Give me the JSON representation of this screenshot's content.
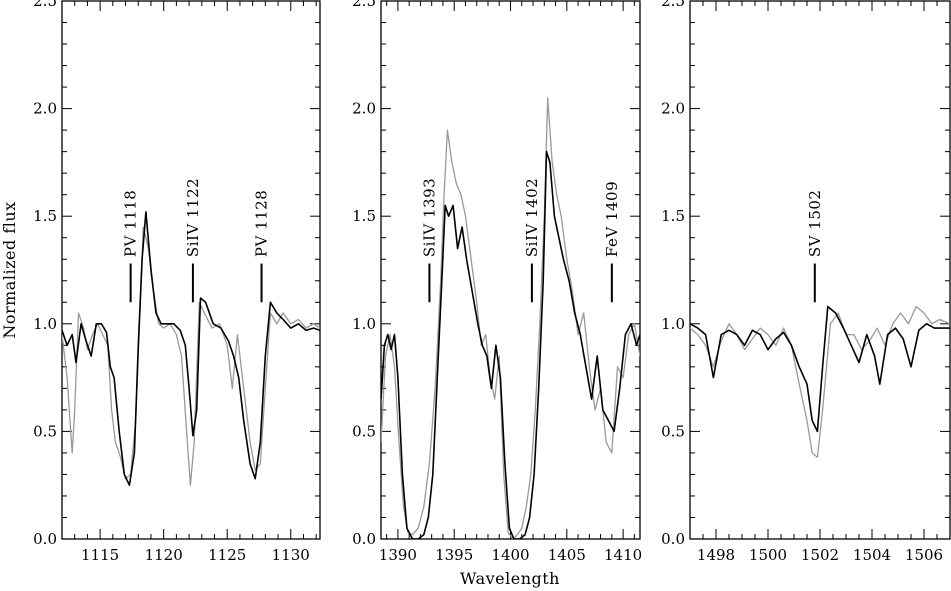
{
  "figure": {
    "ylabel": "Normalized flux",
    "xlabel": "Wavelength"
  },
  "colors": {
    "model": "#000000",
    "observed": "#999999",
    "axes": "#000000"
  },
  "chart_data": [
    {
      "type": "line",
      "xlim": [
        1112,
        1132.3
      ],
      "ylim": [
        0.0,
        2.5
      ],
      "xticks": [
        1115,
        1120,
        1125,
        1130
      ],
      "yticks": [
        0.0,
        0.5,
        1.0,
        1.5,
        2.0,
        2.5
      ],
      "ytick_labels": [
        "0.0",
        "0.5",
        "1.0",
        "1.5",
        "2.0",
        "2.5"
      ],
      "line_ids": [
        {
          "label": "PV   1118",
          "wavelength": 1117.4
        },
        {
          "label": "SiIV 1122",
          "wavelength": 1122.3
        },
        {
          "label": "PV   1128",
          "wavelength": 1127.7
        }
      ],
      "series": [
        {
          "style": "observed",
          "x": [
            1112,
            1112.4,
            1112.8,
            1113,
            1113.3,
            1113.7,
            1114,
            1114.4,
            1114.8,
            1115.2,
            1115.6,
            1115.9,
            1116.2,
            1116.6,
            1117,
            1117.4,
            1117.8,
            1118.1,
            1118.4,
            1118.8,
            1119.2,
            1119.6,
            1120,
            1120.5,
            1121,
            1121.4,
            1121.8,
            1122.1,
            1122.4,
            1122.8,
            1123.2,
            1123.8,
            1124.4,
            1125,
            1125.4,
            1125.8,
            1126.3,
            1126.8,
            1127.2,
            1127.6,
            1128,
            1128.4,
            1128.9,
            1129.4,
            1130,
            1130.6,
            1131.2,
            1131.8,
            1132.3
          ],
          "y": [
            0.95,
            0.75,
            0.4,
            0.6,
            1.05,
            0.98,
            0.88,
            0.95,
            1.0,
            0.95,
            0.9,
            0.6,
            0.45,
            0.38,
            0.28,
            0.3,
            0.55,
            1.0,
            1.45,
            1.35,
            1.15,
            1.0,
            0.98,
            1.0,
            0.95,
            0.85,
            0.5,
            0.25,
            0.45,
            1.1,
            1.05,
            0.98,
            1.0,
            0.9,
            0.7,
            0.95,
            0.7,
            0.45,
            0.32,
            0.35,
            0.7,
            1.05,
            1.0,
            1.05,
            1.0,
            1.02,
            0.98,
            1.0,
            0.98
          ]
        },
        {
          "style": "model",
          "x": [
            1112,
            1112.4,
            1112.8,
            1113.1,
            1113.5,
            1113.9,
            1114.3,
            1114.7,
            1115.1,
            1115.5,
            1115.8,
            1116.1,
            1116.5,
            1116.9,
            1117.3,
            1117.7,
            1118,
            1118.3,
            1118.6,
            1119,
            1119.4,
            1119.8,
            1120.3,
            1120.8,
            1121.3,
            1121.7,
            1122,
            1122.3,
            1122.6,
            1122.9,
            1123.3,
            1123.9,
            1124.5,
            1125.1,
            1125.5,
            1125.9,
            1126.3,
            1126.8,
            1127.2,
            1127.6,
            1128,
            1128.4,
            1128.9,
            1129.4,
            1130,
            1130.6,
            1131.2,
            1131.8,
            1132.3
          ],
          "y": [
            0.97,
            0.9,
            0.95,
            0.82,
            1.0,
            0.92,
            0.85,
            1.0,
            1.0,
            0.96,
            0.8,
            0.75,
            0.5,
            0.3,
            0.25,
            0.4,
            0.9,
            1.3,
            1.52,
            1.25,
            1.05,
            1.0,
            1.0,
            1.0,
            0.97,
            0.9,
            0.7,
            0.48,
            0.6,
            1.12,
            1.1,
            1.0,
            0.98,
            0.92,
            0.85,
            0.75,
            0.55,
            0.35,
            0.28,
            0.45,
            0.85,
            1.1,
            1.05,
            1.02,
            0.98,
            1.0,
            0.97,
            0.98,
            0.97
          ]
        }
      ]
    },
    {
      "type": "line",
      "xlim": [
        1388.5,
        1411.5
      ],
      "ylim": [
        0.0,
        2.5
      ],
      "xticks": [
        1390,
        1395,
        1400,
        1405,
        1410
      ],
      "yticks": [
        0.0,
        0.5,
        1.0,
        1.5,
        2.0,
        2.5
      ],
      "ytick_labels": [
        "0.0",
        "0.5",
        "1.0",
        "1.5",
        "2.0",
        "2.5"
      ],
      "line_ids": [
        {
          "label": "SiIV 1393",
          "wavelength": 1392.8
        },
        {
          "label": "SiIV 1402",
          "wavelength": 1401.9
        },
        {
          "label": "FeV  1409",
          "wavelength": 1409.0
        }
      ],
      "series": [
        {
          "style": "observed",
          "x": [
            1388.5,
            1388.9,
            1389.3,
            1389.7,
            1390.1,
            1390.5,
            1390.9,
            1391.3,
            1391.8,
            1392.3,
            1392.8,
            1393.3,
            1393.8,
            1394.1,
            1394.4,
            1394.8,
            1395.2,
            1395.6,
            1396,
            1396.5,
            1397,
            1397.4,
            1397.8,
            1398.2,
            1398.6,
            1399,
            1399.4,
            1399.8,
            1400.2,
            1400.6,
            1401,
            1401.4,
            1401.8,
            1402.2,
            1402.6,
            1403,
            1403.3,
            1403.7,
            1404.1,
            1404.5,
            1405,
            1405.5,
            1406,
            1406.5,
            1407,
            1407.5,
            1408,
            1408.5,
            1409,
            1409.5,
            1410,
            1410.5,
            1411,
            1411.5
          ],
          "y": [
            0.45,
            0.85,
            0.95,
            0.8,
            0.45,
            0.15,
            0.03,
            0.02,
            0.05,
            0.15,
            0.35,
            0.7,
            1.2,
            1.6,
            1.9,
            1.75,
            1.65,
            1.6,
            1.5,
            1.3,
            1.1,
            0.9,
            0.95,
            0.75,
            0.65,
            0.85,
            0.3,
            0.03,
            0.0,
            0.02,
            0.05,
            0.15,
            0.3,
            0.6,
            1.0,
            1.5,
            2.05,
            1.75,
            1.6,
            1.5,
            1.3,
            1.15,
            0.95,
            1.05,
            0.8,
            0.6,
            0.7,
            0.45,
            0.4,
            0.8,
            0.75,
            0.95,
            1.0,
            0.85
          ]
        },
        {
          "style": "model",
          "x": [
            1388.5,
            1388.8,
            1389.1,
            1389.4,
            1389.7,
            1390,
            1390.4,
            1390.8,
            1391.3,
            1391.8,
            1392.3,
            1392.7,
            1393.1,
            1393.5,
            1393.9,
            1394.2,
            1394.5,
            1394.9,
            1395.3,
            1395.7,
            1396.1,
            1396.6,
            1397.1,
            1397.5,
            1397.9,
            1398.3,
            1398.7,
            1399.1,
            1399.5,
            1399.9,
            1400.3,
            1400.8,
            1401.3,
            1401.7,
            1402.1,
            1402.5,
            1402.9,
            1403.2,
            1403.5,
            1403.9,
            1404.3,
            1404.7,
            1405.2,
            1405.7,
            1406.2,
            1406.7,
            1407.2,
            1407.7,
            1408.2,
            1408.7,
            1409.2,
            1409.7,
            1410.2,
            1410.7,
            1411.2,
            1411.5
          ],
          "y": [
            0.65,
            0.9,
            0.95,
            0.88,
            0.95,
            0.75,
            0.3,
            0.05,
            0.0,
            0.0,
            0.02,
            0.1,
            0.3,
            0.75,
            1.2,
            1.55,
            1.5,
            1.55,
            1.35,
            1.45,
            1.3,
            1.15,
            1.0,
            0.9,
            0.85,
            0.7,
            0.9,
            0.75,
            0.35,
            0.05,
            0.0,
            0.0,
            0.02,
            0.1,
            0.3,
            0.7,
            1.2,
            1.8,
            1.75,
            1.5,
            1.4,
            1.3,
            1.2,
            1.05,
            0.95,
            0.8,
            0.65,
            0.85,
            0.6,
            0.55,
            0.5,
            0.7,
            0.95,
            1.0,
            0.9,
            0.95
          ]
        }
      ]
    },
    {
      "type": "line",
      "xlim": [
        1497,
        1507
      ],
      "ylim": [
        0.0,
        2.5
      ],
      "xticks": [
        1498,
        1500,
        1502,
        1504,
        1506
      ],
      "yticks": [
        0.0,
        0.5,
        1.0,
        1.5,
        2.0,
        2.5
      ],
      "ytick_labels": [
        "0.0",
        "0.5",
        "1.0",
        "1.5",
        "2.0",
        "2.5"
      ],
      "line_ids": [
        {
          "label": "SV 1502",
          "wavelength": 1501.8
        }
      ],
      "series": [
        {
          "style": "observed",
          "x": [
            1497,
            1497.3,
            1497.6,
            1497.9,
            1498.2,
            1498.5,
            1498.8,
            1499.1,
            1499.4,
            1499.7,
            1500,
            1500.3,
            1500.6,
            1500.9,
            1501.2,
            1501.5,
            1501.7,
            1501.9,
            1502.1,
            1502.4,
            1502.7,
            1503,
            1503.3,
            1503.6,
            1503.9,
            1504.2,
            1504.5,
            1504.8,
            1505.1,
            1505.4,
            1505.7,
            1506,
            1506.3,
            1506.6,
            1507
          ],
          "y": [
            0.98,
            0.95,
            0.9,
            0.8,
            0.92,
            1.0,
            0.95,
            0.88,
            0.93,
            0.98,
            0.95,
            0.9,
            0.98,
            0.9,
            0.72,
            0.55,
            0.4,
            0.38,
            0.6,
            1.0,
            1.05,
            0.95,
            0.95,
            0.88,
            0.92,
            0.98,
            0.9,
            1.0,
            1.05,
            1.0,
            1.08,
            1.05,
            1.0,
            1.02,
            1.0
          ]
        },
        {
          "style": "model",
          "x": [
            1497,
            1497.3,
            1497.6,
            1497.9,
            1498.2,
            1498.5,
            1498.8,
            1499.1,
            1499.4,
            1499.7,
            1500,
            1500.3,
            1500.6,
            1500.9,
            1501.2,
            1501.5,
            1501.7,
            1501.9,
            1502.1,
            1502.3,
            1502.6,
            1502.9,
            1503.2,
            1503.5,
            1503.8,
            1504.1,
            1504.3,
            1504.6,
            1504.9,
            1505.2,
            1505.5,
            1505.8,
            1506.1,
            1506.4,
            1506.7,
            1507
          ],
          "y": [
            1.0,
            0.98,
            0.95,
            0.75,
            0.95,
            0.97,
            0.95,
            0.9,
            0.97,
            0.95,
            0.88,
            0.93,
            0.96,
            0.9,
            0.8,
            0.72,
            0.55,
            0.5,
            0.8,
            1.08,
            1.05,
            0.98,
            0.9,
            0.82,
            0.95,
            0.85,
            0.72,
            0.95,
            0.98,
            0.93,
            0.8,
            0.97,
            1.0,
            0.98,
            0.98,
            0.98
          ]
        }
      ]
    }
  ]
}
